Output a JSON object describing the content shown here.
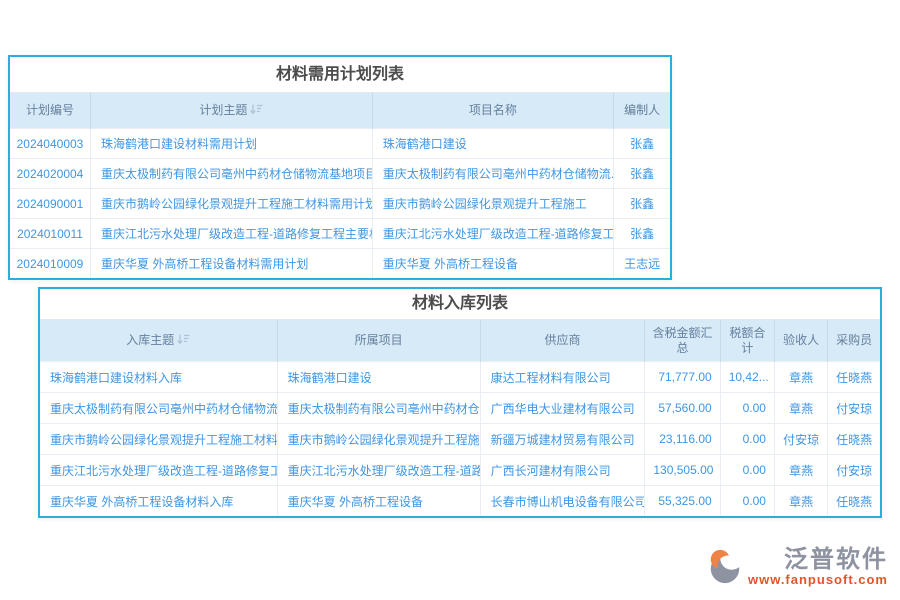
{
  "colors": {
    "panel_border": "#2badde",
    "header_bg": "#d7eaf8",
    "header_text": "#64809d",
    "link_text": "#3e96e5",
    "title_text": "#4c4c4c",
    "logo_orange": "#ee8247",
    "logo_gray": "#8e93a1",
    "url_orange": "#e2552b"
  },
  "plan_table": {
    "title": "材料需用计划列表",
    "columns": [
      "计划编号",
      "计划主题",
      "项目名称",
      "编制人"
    ],
    "sorted_column": "计划主题",
    "rows": [
      [
        "2024040003",
        "珠海鹤港口建设材料需用计划",
        "珠海鹤港口建设",
        "张鑫"
      ],
      [
        "2024020004",
        "重庆太极制药有限公司亳州中药材仓储物流基地项目...",
        "重庆太极制药有限公司亳州中药材仓储物流...",
        "张鑫"
      ],
      [
        "2024090001",
        "重庆市鹅岭公园绿化景观提升工程施工材料需用计划",
        "重庆市鹅岭公园绿化景观提升工程施工",
        "张鑫"
      ],
      [
        "2024010011",
        "重庆江北污水处理厂级改造工程-道路修复工程主要材料",
        "重庆江北污水处理厂级改造工程-道路修复工程",
        "张鑫"
      ],
      [
        "2024010009",
        "重庆华夏 外高桥工程设备材料需用计划",
        "重庆华夏 外高桥工程设备",
        "王志远"
      ]
    ]
  },
  "inbound_table": {
    "title": "材料入库列表",
    "columns": [
      "入库主题",
      "所属项目",
      "供应商",
      "含税金额汇总",
      "税额合计",
      "验收人",
      "采购员"
    ],
    "sorted_column": "入库主题",
    "rows": [
      [
        "珠海鹤港口建设材料入库",
        "珠海鹤港口建设",
        "康达工程材料有限公司",
        "71,777.00",
        "10,42...",
        "章燕",
        "任晓燕"
      ],
      [
        "重庆太极制药有限公司亳州中药材仓储物流基...",
        "重庆太极制药有限公司亳州中药材仓...",
        "广西华电大业建材有限公司",
        "57,560.00",
        "0.00",
        "章燕",
        "付安琼"
      ],
      [
        "重庆市鹅岭公园绿化景观提升工程施工材料入库",
        "重庆市鹅岭公园绿化景观提升工程施工",
        "新疆万城建材贸易有限公司",
        "23,116.00",
        "0.00",
        "付安琼",
        "任晓燕"
      ],
      [
        "重庆江北污水处理厂级改造工程-道路修复工程...",
        "重庆江北污水处理厂级改造工程-道路...",
        "广西长河建材有限公司",
        "130,505.00",
        "0.00",
        "章燕",
        "付安琼"
      ],
      [
        "重庆华夏 外高桥工程设备材料入库",
        "重庆华夏 外高桥工程设备",
        "长春市博山机电设备有限公司",
        "55,325.00",
        "0.00",
        "章燕",
        "任晓燕"
      ]
    ]
  },
  "logo": {
    "name": "泛普软件",
    "url": "www.fanpusoft.com"
  }
}
